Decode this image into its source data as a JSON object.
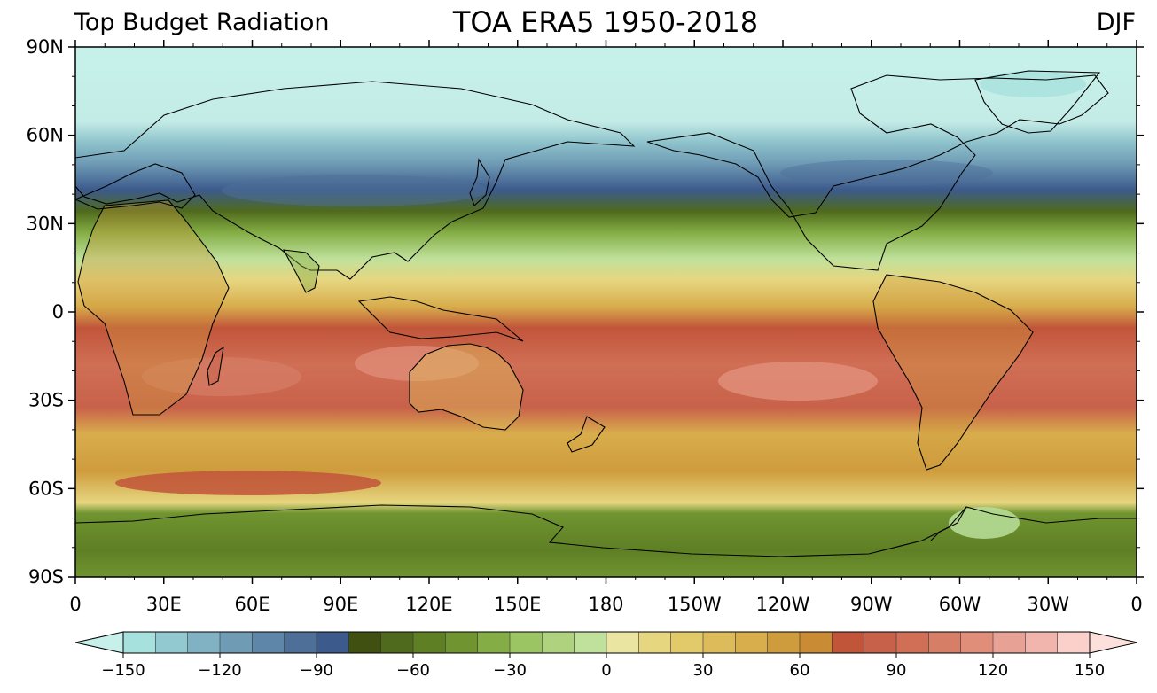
{
  "titles": {
    "left": "Top Budget Radiation",
    "center": "TOA ERA5 1950-2018",
    "right": "DJF"
  },
  "lat_labels": [
    "90N",
    "60N",
    "30N",
    "0",
    "30S",
    "60S",
    "90S"
  ],
  "lon_labels": [
    "0",
    "30E",
    "60E",
    "90E",
    "120E",
    "150E",
    "180",
    "150W",
    "120W",
    "90W",
    "60W",
    "30W",
    "0"
  ],
  "colorbar": {
    "min": -150,
    "max": 150,
    "step": 10,
    "tick_labels": [
      "−150",
      "−120",
      "−90",
      "−60",
      "−30",
      "0",
      "30",
      "60",
      "90",
      "120",
      "150"
    ],
    "colors": [
      "#a6e1dd",
      "#92c8cf",
      "#81b2c3",
      "#6f9bb5",
      "#5e86a8",
      "#4d6f98",
      "#3c5a8c",
      "#3f5010",
      "#4f6a1c",
      "#5f7f25",
      "#6f9430",
      "#84ad45",
      "#9bc462",
      "#aed27d",
      "#c0e19b",
      "#eae6a2",
      "#e6d680",
      "#e2ca6a",
      "#ddbb5a",
      "#d8ad4c",
      "#cf9c3d",
      "#c98c35",
      "#c1553a",
      "#c8614a",
      "#d06f55",
      "#d67e66",
      "#e08e7a",
      "#e8a295",
      "#f1b5ad",
      "#fbd0cb"
    ],
    "under_color": "#c8f0ea",
    "over_color": "#fce0dc"
  }
}
